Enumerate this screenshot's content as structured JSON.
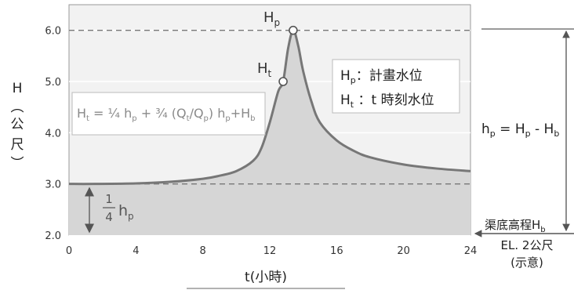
{
  "chart_data": {
    "type": "area",
    "xlabel": "t(小時)",
    "ylabel_chars": [
      "H",
      "︵",
      "公",
      "尺",
      "︶"
    ],
    "xlim": [
      0,
      24
    ],
    "ylim": [
      2.0,
      6.5
    ],
    "xticks": [
      0,
      4,
      8,
      12,
      16,
      20,
      24
    ],
    "yticks": [
      2.0,
      3.0,
      4.0,
      5.0,
      6.0
    ],
    "ytick_labels": [
      "2.0",
      "3.0",
      "4.0",
      "5.0",
      "6.0"
    ],
    "grid": true,
    "series": [
      {
        "x": [
          0,
          1.5,
          4,
          6,
          8,
          9,
          10,
          11,
          11.5,
          12,
          12.5,
          12.8,
          13.1,
          13.4,
          13.7,
          14,
          14.5,
          15,
          16,
          17,
          18,
          20,
          22,
          24
        ],
        "y": [
          3.0,
          3.0,
          3.01,
          3.04,
          3.1,
          3.16,
          3.25,
          3.45,
          3.7,
          4.2,
          4.8,
          5.0,
          5.65,
          6.0,
          5.7,
          5.2,
          4.6,
          4.2,
          3.85,
          3.65,
          3.52,
          3.38,
          3.3,
          3.25
        ]
      }
    ],
    "reference_lines": [
      {
        "y": 6.0,
        "style": "dashed"
      },
      {
        "y": 3.0,
        "style": "dashed"
      }
    ],
    "points": [
      {
        "name": "Hp",
        "x": 13.4,
        "y": 6.0
      },
      {
        "name": "Ht",
        "x": 12.8,
        "y": 5.0
      }
    ],
    "annotations": {
      "hp_point": "Hp",
      "ht_point": "Ht",
      "legend_line1": "Hp：計畫水位",
      "legend_line2": "Ht ：t 時刻水位",
      "formula": "Ht = ¼hp + ¾(Qt/Qp) hp+Hb",
      "quarter_hp": "¼hp",
      "hp_def": "hp = Hp - Hb",
      "channel_bottom": "渠底高程Hb",
      "el_line1": "EL. 2公尺",
      "el_line2": "(示意)"
    }
  }
}
